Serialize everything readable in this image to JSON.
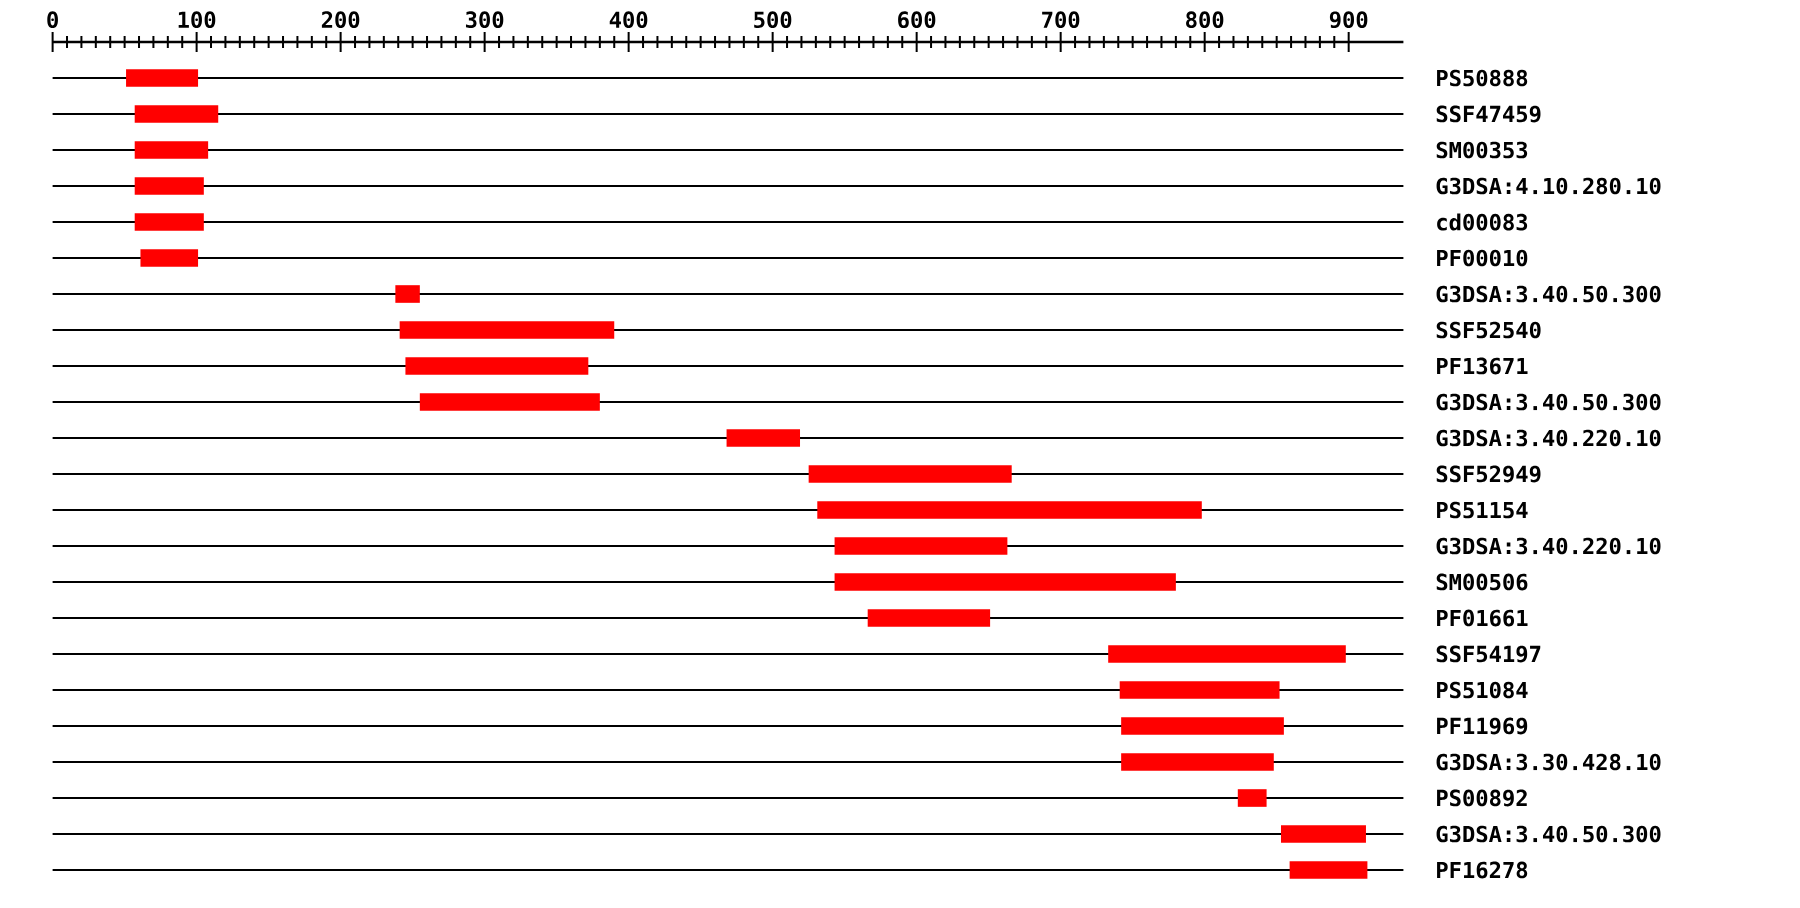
{
  "chart_data": {
    "type": "bar",
    "orientation": "horizontal",
    "color": "#ff0000",
    "grid": "y",
    "categories": [
      "PS50888",
      "SSF47459",
      "SM00353",
      "G3DSA:4.10.280.10",
      "cd00083",
      "PF00010",
      "G3DSA:3.40.50.300",
      "SSF52540",
      "PF13671",
      "G3DSA:3.40.50.300",
      "G3DSA:3.40.220.10",
      "SSF52949",
      "PS51154",
      "G3DSA:3.40.220.10",
      "SM00506",
      "PF01661",
      "SSF54197",
      "PS51084",
      "PF11969",
      "G3DSA:3.30.428.10",
      "PS00892",
      "G3DSA:3.40.50.300",
      "PF16278"
    ],
    "base": [
      51,
      57,
      57,
      57,
      57,
      61,
      238,
      241,
      245,
      255,
      468,
      525,
      531,
      543,
      543,
      566,
      733,
      741,
      742,
      742,
      823,
      853,
      859
    ],
    "values": [
      50,
      58,
      51,
      48,
      48,
      40,
      17,
      149,
      127,
      125,
      51,
      141,
      267,
      120,
      237,
      85,
      165,
      111,
      113,
      106,
      20,
      59,
      54
    ],
    "xlim": [
      0,
      938
    ],
    "xticks": [
      0,
      100,
      200,
      300,
      400,
      500,
      600,
      700,
      800,
      900
    ]
  }
}
